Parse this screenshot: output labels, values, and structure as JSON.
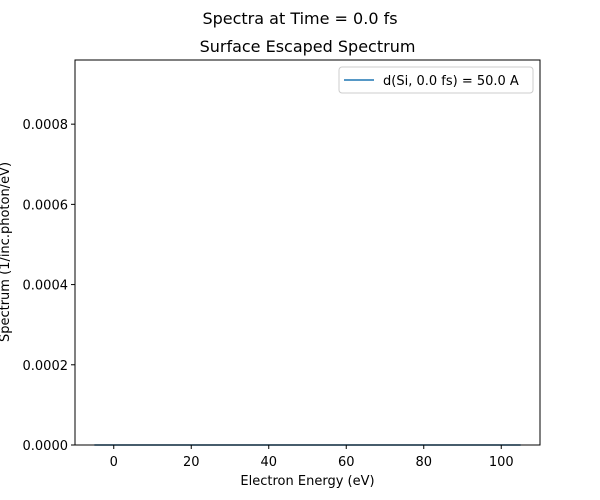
{
  "chart_data": {
    "type": "line",
    "suptitle": "Spectra at Time = 0.0 fs",
    "title": "Surface Escaped Spectrum",
    "xlabel": "Electron Energy (eV)",
    "ylabel": "Spectrum (1/inc.photon/eV)",
    "xlim": [
      -10,
      110
    ],
    "ylim": [
      0,
      0.00096
    ],
    "xticks": [
      {
        "value": 0,
        "label": "0"
      },
      {
        "value": 20,
        "label": "20"
      },
      {
        "value": 40,
        "label": "40"
      },
      {
        "value": 60,
        "label": "60"
      },
      {
        "value": 80,
        "label": "80"
      },
      {
        "value": 100,
        "label": "100"
      }
    ],
    "yticks": [
      {
        "value": 0.0,
        "label": "0.0000"
      },
      {
        "value": 0.0002,
        "label": "0.0002"
      },
      {
        "value": 0.0004,
        "label": "0.0004"
      },
      {
        "value": 0.0006,
        "label": "0.0006"
      },
      {
        "value": 0.0008,
        "label": "0.0008"
      }
    ],
    "grid": false,
    "legend_position": "top-right",
    "series": [
      {
        "name": "d(Si, 0.0 fs) = 50.0 A",
        "color": "#1f77b4",
        "x": [
          -5,
          0,
          20,
          40,
          60,
          80,
          100,
          105
        ],
        "y": [
          0,
          0,
          0,
          0,
          0,
          0,
          0,
          0
        ]
      }
    ]
  }
}
